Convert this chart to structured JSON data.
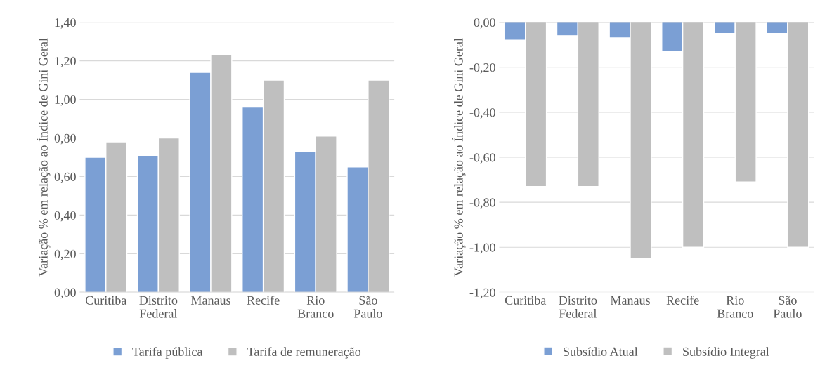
{
  "chart_data": [
    {
      "type": "bar",
      "ylabel": "Variação % em relação ao Índice de Gini Geral",
      "categories": [
        "Curitiba",
        "Distrito Federal",
        "Manaus",
        "Recife",
        "Rio Branco",
        "São Paulo"
      ],
      "series": [
        {
          "name": "Tarifa pública",
          "color": "#7b9fd4",
          "values": [
            0.7,
            0.71,
            1.14,
            0.96,
            0.73,
            0.65
          ]
        },
        {
          "name": "Tarifa de remuneração",
          "color": "#bfbfbf",
          "values": [
            0.78,
            0.8,
            1.23,
            1.1,
            0.81,
            1.1
          ]
        }
      ],
      "ylim": [
        0,
        1.4
      ],
      "yticks": [
        {
          "value": 0,
          "label": "0,00"
        },
        {
          "value": 0.2,
          "label": "0,20"
        },
        {
          "value": 0.4,
          "label": "0,40"
        },
        {
          "value": 0.6,
          "label": "0,60"
        },
        {
          "value": 0.8,
          "label": "0,80"
        },
        {
          "value": 1.0,
          "label": "1,00"
        },
        {
          "value": 1.2,
          "label": "1,20"
        },
        {
          "value": 1.4,
          "label": "1,40"
        }
      ],
      "grid": "y",
      "legend": "bottom"
    },
    {
      "type": "bar",
      "ylabel": "Variação % em relação ao Índice de Gini Geral",
      "categories": [
        "Curitiba",
        "Distrito Federal",
        "Manaus",
        "Recife",
        "Rio Branco",
        "São Paulo"
      ],
      "series": [
        {
          "name": "Subsídio Atual",
          "color": "#7b9fd4",
          "values": [
            -0.08,
            -0.06,
            -0.07,
            -0.13,
            -0.05,
            -0.05
          ]
        },
        {
          "name": "Subsídio Integral",
          "color": "#bfbfbf",
          "values": [
            -0.73,
            -0.73,
            -1.05,
            -1.0,
            -0.71,
            -1.0
          ]
        }
      ],
      "ylim": [
        -1.2,
        0
      ],
      "yticks": [
        {
          "value": 0,
          "label": "0,00"
        },
        {
          "value": -0.2,
          "label": "-0,20"
        },
        {
          "value": -0.4,
          "label": "-0,40"
        },
        {
          "value": -0.6,
          "label": "-0,60"
        },
        {
          "value": -0.8,
          "label": "-0,80"
        },
        {
          "value": -1.0,
          "label": "-1,00"
        },
        {
          "value": -1.2,
          "label": "-1,20"
        }
      ],
      "grid": "y",
      "legend": "bottom"
    }
  ]
}
